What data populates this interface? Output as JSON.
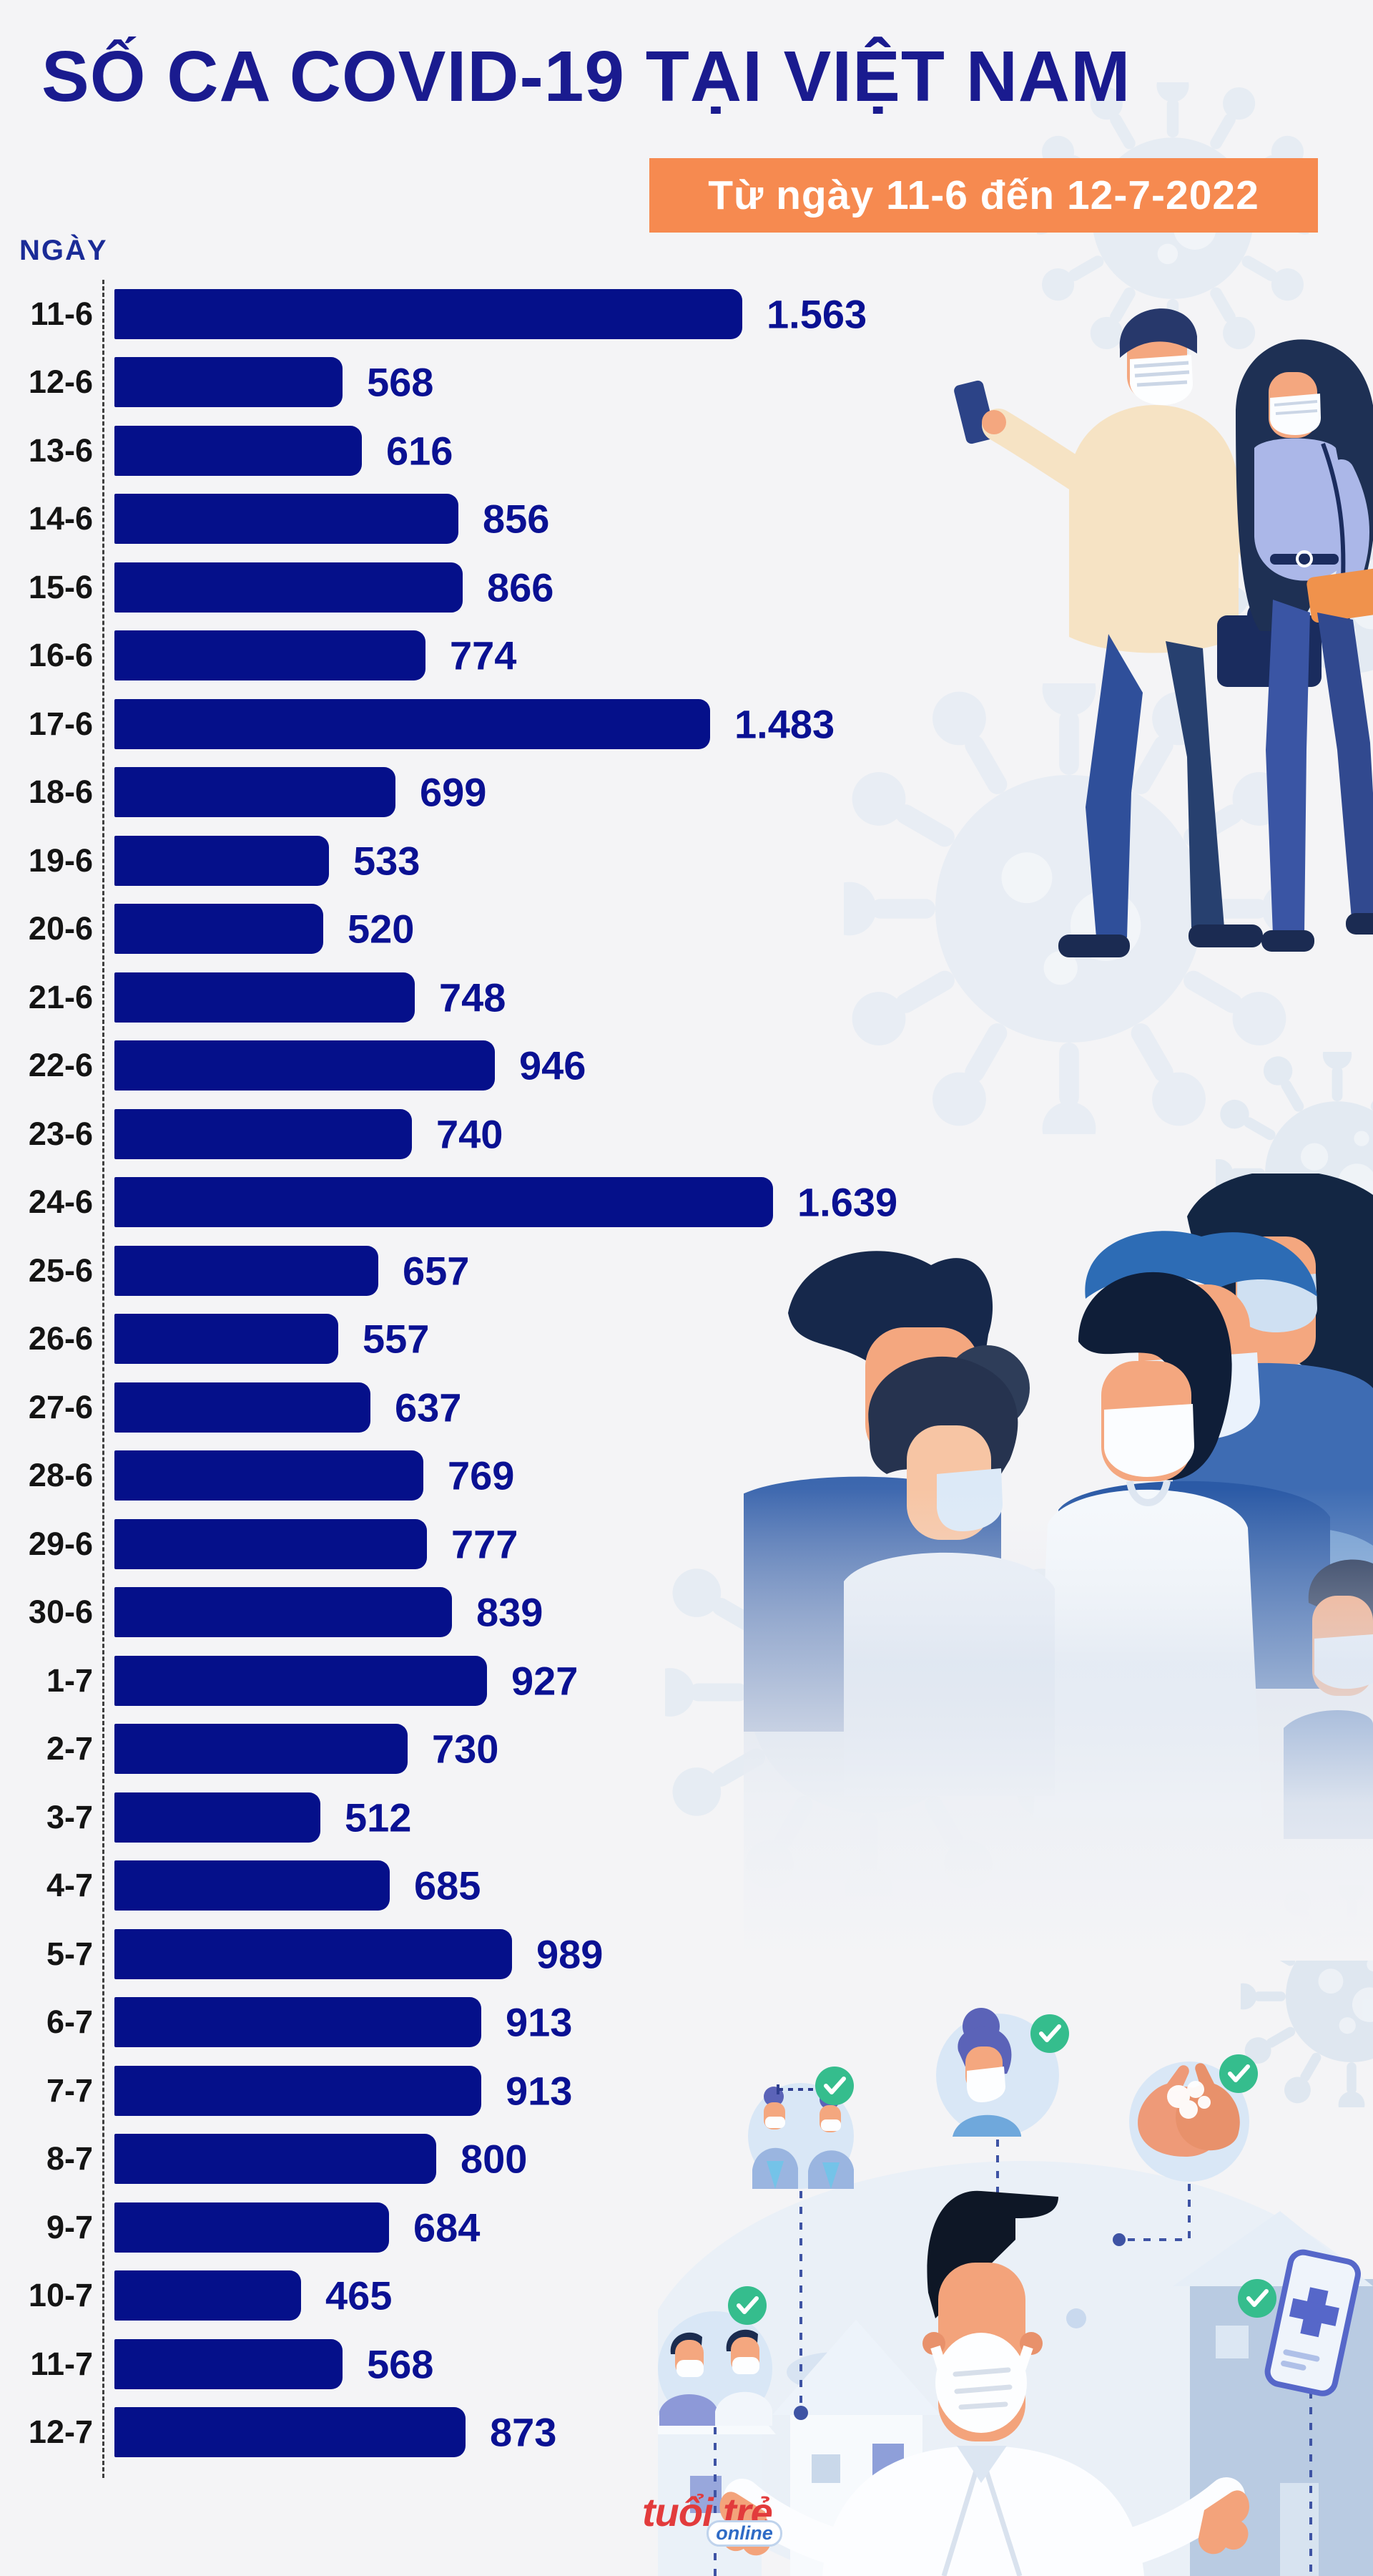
{
  "header": {
    "title": "SỐ CA COVID-19 TẠI VIỆT NAM",
    "subtitle": "Từ ngày 11-6 đến 12-7-2022"
  },
  "chart_data": {
    "type": "bar",
    "orientation": "horizontal",
    "title": "SỐ CA COVID-19 TẠI VIỆT NAM",
    "subtitle": "Từ ngày 11-6 đến 12-7-2022",
    "axis_label": "NGÀY",
    "categories": [
      "11-6",
      "12-6",
      "13-6",
      "14-6",
      "15-6",
      "16-6",
      "17-6",
      "18-6",
      "19-6",
      "20-6",
      "21-6",
      "22-6",
      "23-6",
      "24-6",
      "25-6",
      "26-6",
      "27-6",
      "28-6",
      "29-6",
      "30-6",
      "1-7",
      "2-7",
      "3-7",
      "4-7",
      "5-7",
      "6-7",
      "7-7",
      "8-7",
      "9-7",
      "10-7",
      "11-7",
      "12-7"
    ],
    "values": [
      1563,
      568,
      616,
      856,
      866,
      774,
      1483,
      699,
      533,
      520,
      748,
      946,
      740,
      1639,
      657,
      557,
      637,
      769,
      777,
      839,
      927,
      730,
      512,
      685,
      989,
      913,
      913,
      800,
      684,
      465,
      568,
      873
    ],
    "value_labels": [
      "1.563",
      "568",
      "616",
      "856",
      "866",
      "774",
      "1.483",
      "699",
      "533",
      "520",
      "748",
      "946",
      "740",
      "1.639",
      "657",
      "557",
      "637",
      "769",
      "777",
      "839",
      "927",
      "730",
      "512",
      "685",
      "989",
      "913",
      "913",
      "800",
      "684",
      "465",
      "568",
      "873"
    ],
    "xlim": [
      0,
      1700
    ],
    "grid": false,
    "legend": "none",
    "bar_color": "#05108A",
    "value_label_color": "#0A1193",
    "category_label_color": "#141414"
  },
  "footer": {
    "logo_primary": "tuổi trẻ",
    "logo_secondary": "online"
  },
  "colors": {
    "background": "#F4F4F6",
    "title_navy": "#1A1B8F",
    "subtitle_orange": "#F68A50",
    "subtitle_text": "#FFFFFF",
    "check_green": "#35BD8D",
    "logo_red": "#E23B3C",
    "logo_blue": "#2F6BC6",
    "watermark_blue": "#E4EAF2"
  },
  "illustrations": {
    "icons": [
      "virus-watermark-icon",
      "masked-couple-illustration",
      "masked-group-illustration",
      "doctor-illustration",
      "social-distancing-icon",
      "wear-mask-icon",
      "wash-hands-icon",
      "health-app-phone-icon",
      "men-distancing-icon",
      "checkmark-icon",
      "house-icon"
    ]
  }
}
